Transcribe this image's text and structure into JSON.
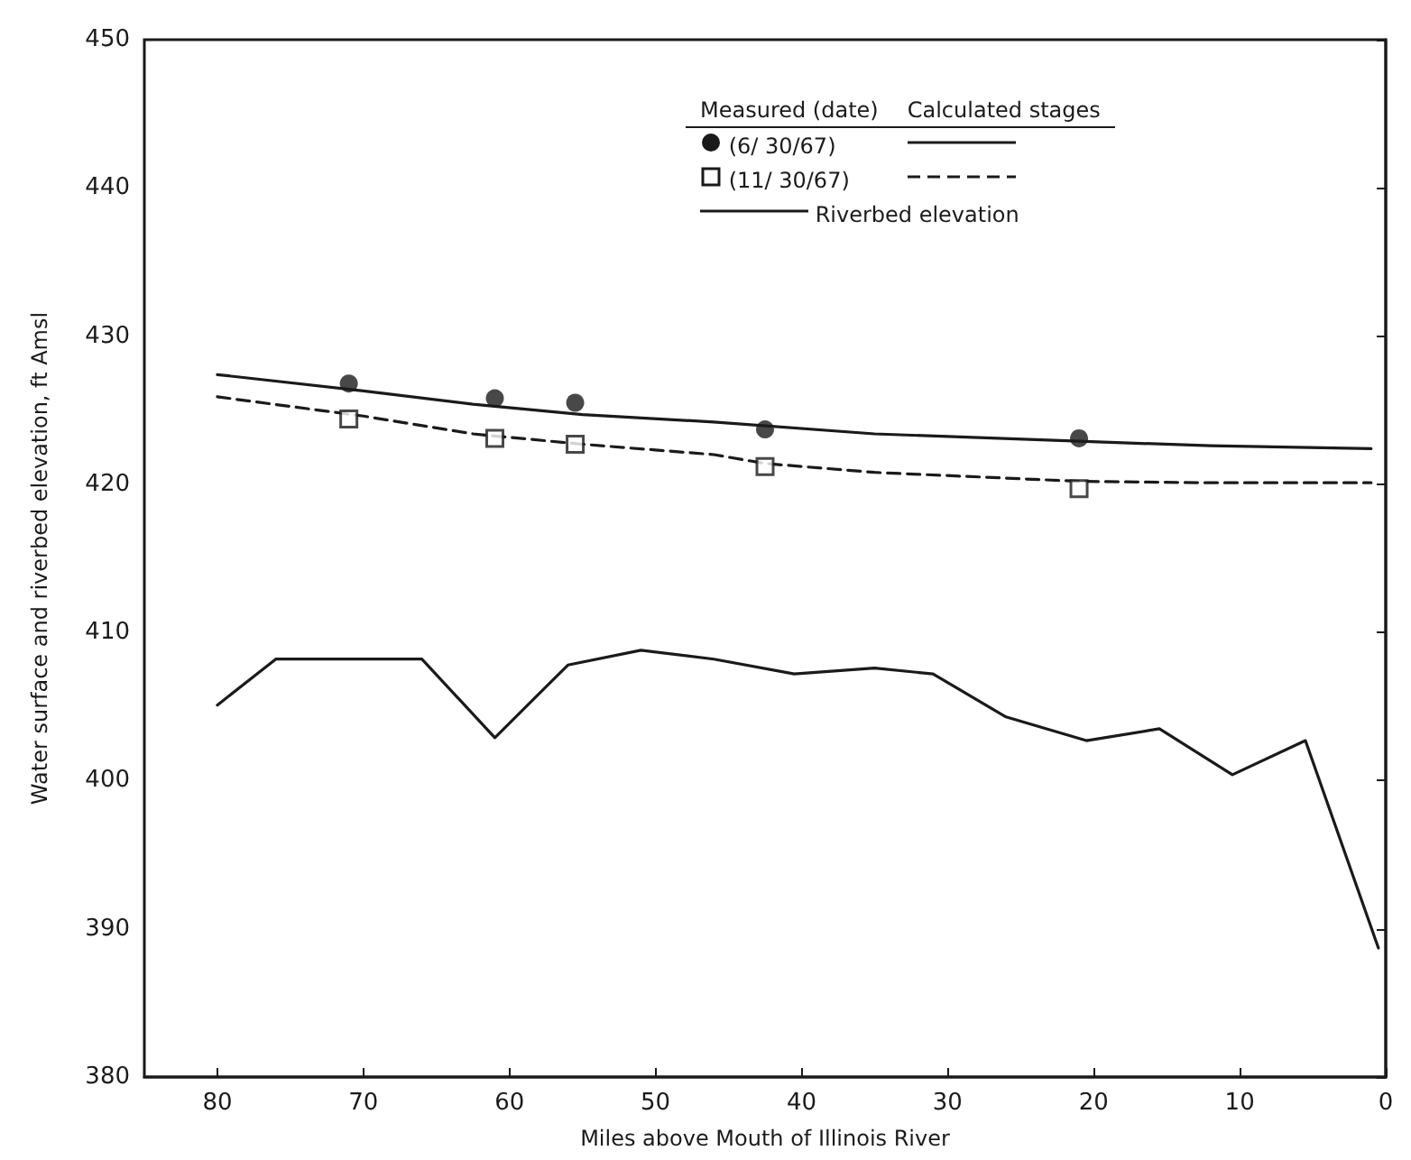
{
  "chart_data": {
    "type": "line",
    "xlabel": "Miles above Mouth of Illinois River",
    "ylabel": "Water surface and riverbed elevation, ft Amsl",
    "legend_title": "Measured (date)",
    "annotations": [
      "Calculated stages"
    ],
    "xlim": [
      85,
      0
    ],
    "xticks": [
      80,
      70,
      60,
      50,
      40,
      30,
      20,
      10,
      0
    ],
    "ylim": [
      380,
      450
    ],
    "yticks": [
      380,
      390,
      400,
      410,
      420,
      430,
      440,
      450
    ],
    "grid": false,
    "legend": "top right",
    "series": [
      {
        "type": "scatter",
        "name": "(6/ 30/67)",
        "color": "#1a1a1a",
        "marker": "circle",
        "x": [
          71,
          61,
          55.5,
          42.5,
          21
        ],
        "values": [
          426.8,
          425.8,
          425.5,
          423.7,
          423.1
        ]
      },
      {
        "type": "scatter",
        "name": "(11/ 30/67)",
        "color": "#1a1a1a",
        "marker": "square",
        "x": [
          71,
          61,
          55.5,
          42.5,
          21
        ],
        "values": [
          424.4,
          423.1,
          422.7,
          421.2,
          419.7
        ]
      },
      {
        "color": "#1a1a1a",
        "line_style": "solid",
        "x": [
          80,
          70,
          62.5,
          55,
          46,
          35,
          21,
          12,
          1
        ],
        "values": [
          427.4,
          426.3,
          425.4,
          424.7,
          424.2,
          423.4,
          422.9,
          422.6,
          422.4
        ]
      },
      {
        "color": "#1a1a1a",
        "line_style": "dashed",
        "x": [
          80,
          70,
          62.5,
          55,
          46,
          42.5,
          35,
          21,
          12,
          1
        ],
        "values": [
          425.9,
          424.6,
          423.4,
          422.7,
          422.0,
          421.4,
          420.8,
          420.2,
          420.1,
          420.1
        ]
      },
      {
        "name": "Riverbed elevation",
        "color": "#1a1a1a",
        "line_style": "solid",
        "x": [
          80,
          76,
          66,
          61,
          56,
          51,
          46,
          40.5,
          35,
          31,
          26,
          20.5,
          15.5,
          10.5,
          5.5,
          0.5
        ],
        "values": [
          405.1,
          408.2,
          408.2,
          402.9,
          407.8,
          408.8,
          408.2,
          407.2,
          407.6,
          407.2,
          404.3,
          402.7,
          403.5,
          400.4,
          402.7,
          388.7
        ]
      }
    ]
  }
}
